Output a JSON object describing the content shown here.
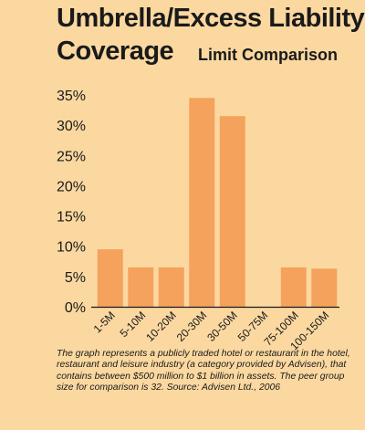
{
  "chart_data": {
    "type": "bar",
    "title_line1": "Umbrella/Excess Liability",
    "title_line2": "Coverage",
    "subtitle": "Limit Comparison",
    "categories": [
      "1-5M",
      "5-10M",
      "10-20M",
      "20-30M",
      "30-50M",
      "50-75M",
      "75-100M",
      "100-150M"
    ],
    "values": [
      9.5,
      6.5,
      6.5,
      34.5,
      31.5,
      0,
      6.5,
      6.3
    ],
    "y_ticks": [
      "0%",
      "5%",
      "10%",
      "15%",
      "20%",
      "25%",
      "30%",
      "35%"
    ],
    "ylim": [
      0,
      35
    ],
    "grid": false,
    "bar_color": "#f5a25c"
  },
  "caption": "The graph represents a publicly traded hotel or restaurant in the hotel, restaurant and leisure industry (a category provided by Advisen), that contains between $500 million to $1 billion in assets. The peer group size for comparison is 32. Source: Advisen Ltd., 2006"
}
